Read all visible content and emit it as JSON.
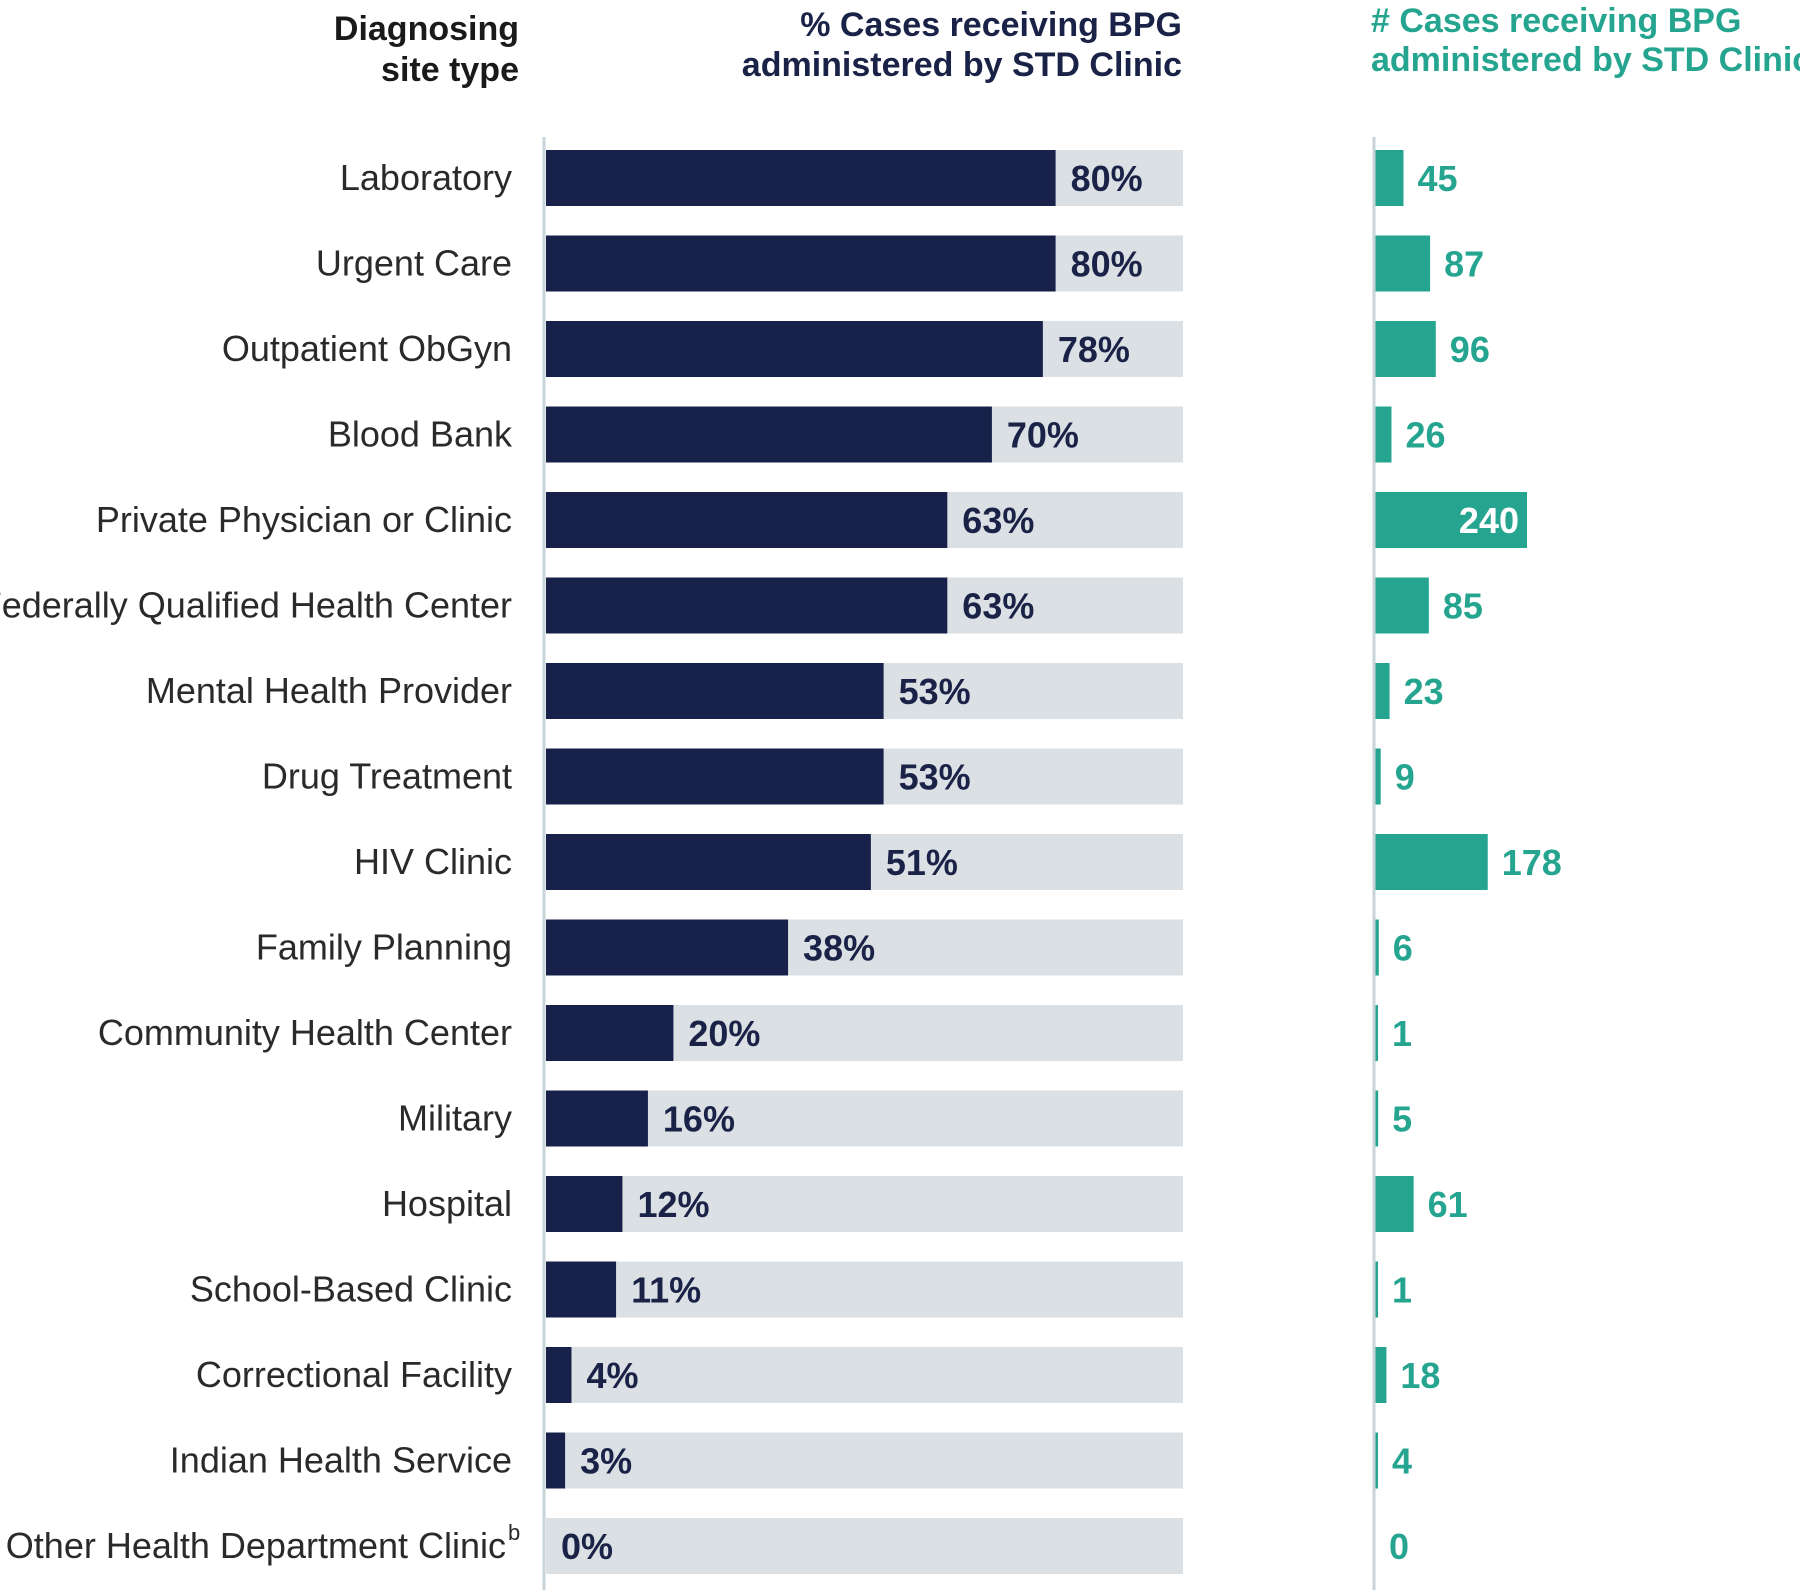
{
  "colors": {
    "pct_bar": "#17214a",
    "pct_track": "#dbe0e4",
    "count_bar": "#25a58f",
    "axis": "#c9d3da"
  },
  "headers": {
    "site_type": [
      "Diagnosing",
      "site type"
    ],
    "pct": [
      "% Cases receiving BPG",
      "administered by STD Clinic"
    ],
    "count": [
      "# Cases receiving BPG",
      "administered by STD Clinic"
    ]
  },
  "chart_data": {
    "type": "bar",
    "orientation": "horizontal",
    "title": "",
    "categories": [
      "Laboratory",
      "Urgent Care",
      "Outpatient ObGyn",
      "Blood Bank",
      "Private Physician or Clinic",
      "Federally Qualified Health Center",
      "Mental Health Provider",
      "Drug Treatment",
      "HIV Clinic",
      "Family Planning",
      "Community Health Center",
      "Military",
      "Hospital",
      "School-Based Clinic",
      "Correctional Facility",
      "Indian Health Service",
      "Other Health Department Clinic"
    ],
    "footnote_marks": {
      "16": "b"
    },
    "series": [
      {
        "name": "% Cases receiving BPG administered by STD Clinic",
        "values": [
          80,
          80,
          78,
          70,
          63,
          63,
          53,
          53,
          51,
          38,
          20,
          16,
          12,
          11,
          4,
          3,
          0
        ],
        "labels": [
          "80%",
          "80%",
          "78%",
          "70%",
          "63%",
          "63%",
          "53%",
          "53%",
          "51%",
          "38%",
          "20%",
          "16%",
          "12%",
          "11%",
          "4%",
          "3%",
          "0%"
        ],
        "xlim": [
          0,
          100
        ]
      },
      {
        "name": "# Cases receiving BPG administered by STD Clinic",
        "values": [
          45,
          87,
          96,
          26,
          240,
          85,
          23,
          9,
          178,
          6,
          1,
          5,
          61,
          1,
          18,
          4,
          0
        ],
        "labels": [
          "45",
          "87",
          "96",
          "26",
          "240",
          "85",
          "23",
          "9",
          "178",
          "6",
          "1",
          "5",
          "61",
          "1",
          "18",
          "4",
          "0"
        ],
        "xlim": [
          0,
          240
        ]
      }
    ]
  }
}
